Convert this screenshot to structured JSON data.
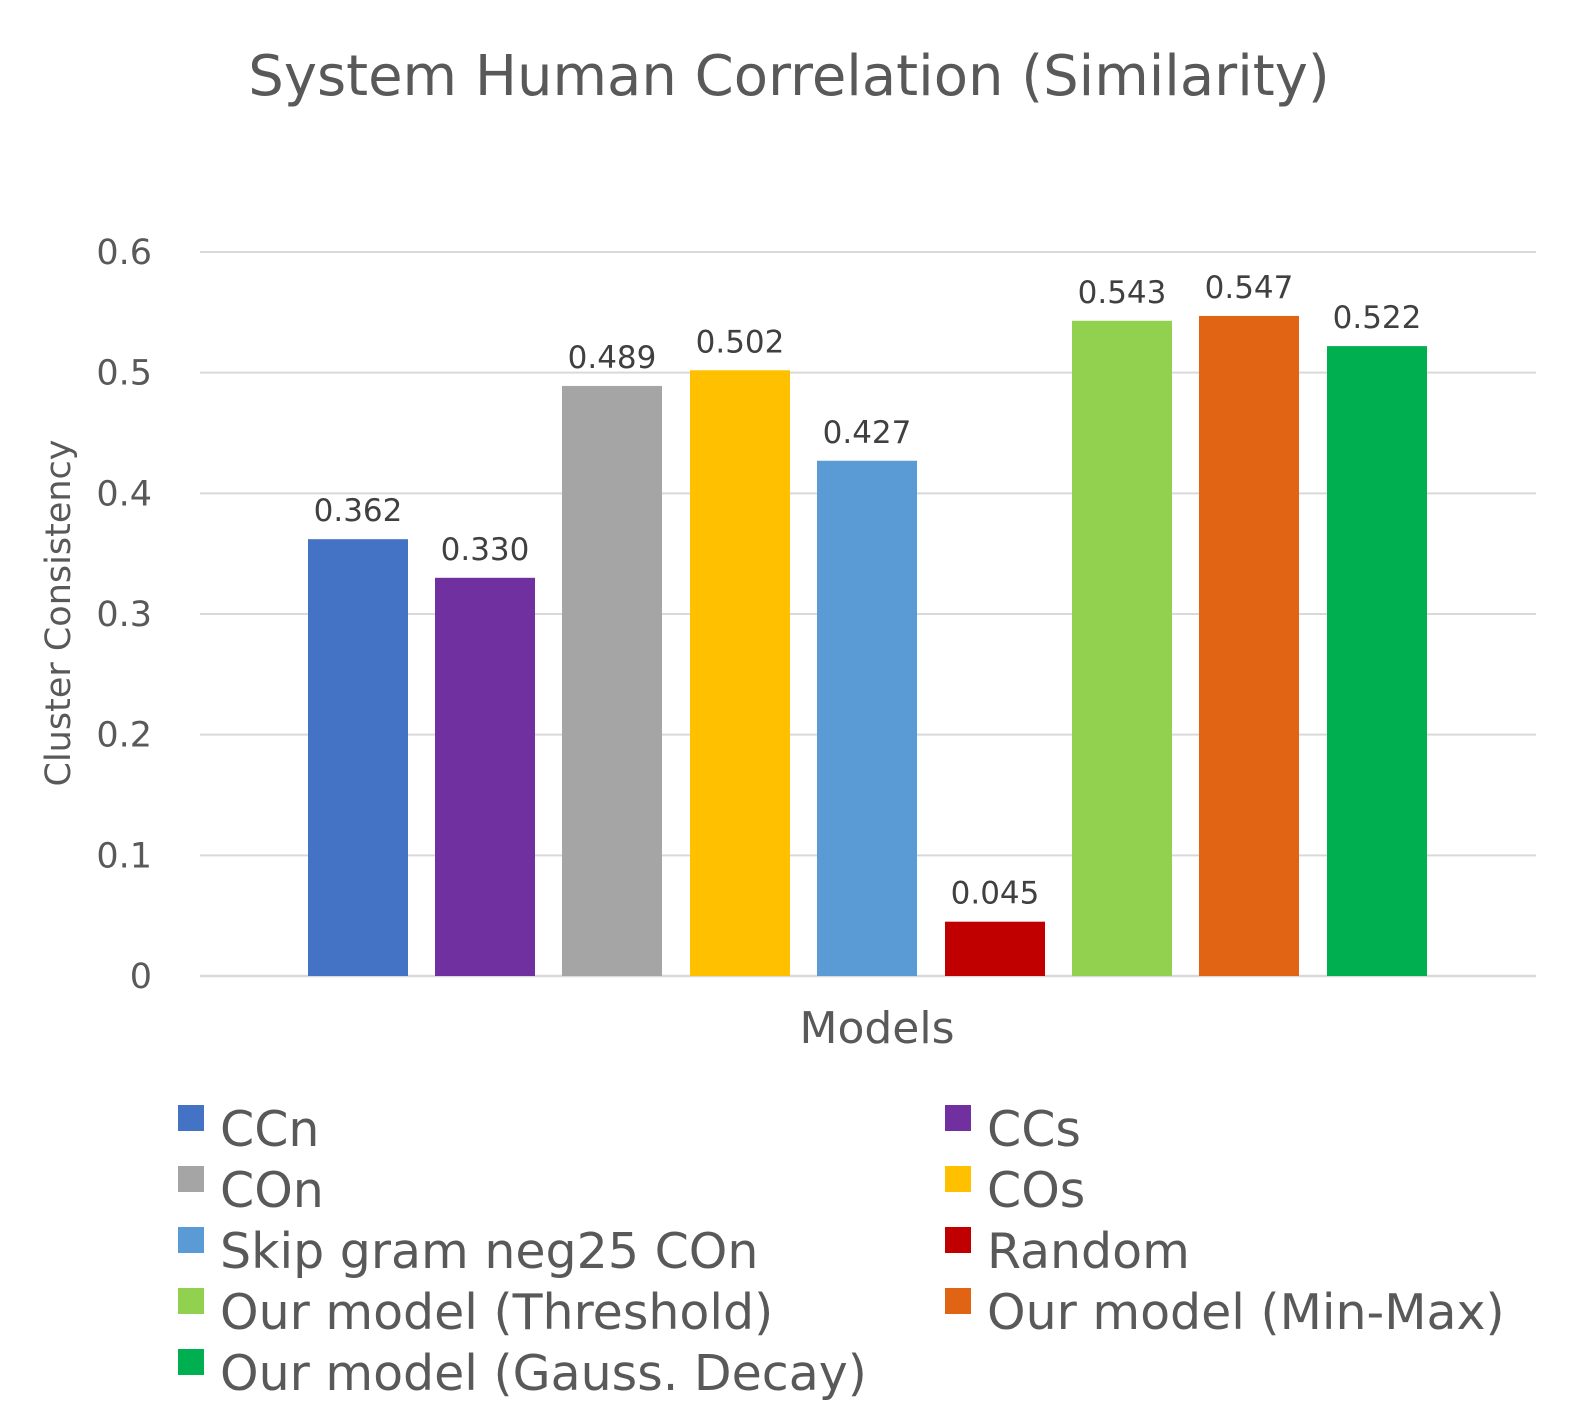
{
  "chart_data": {
    "type": "bar",
    "title": "System Human Correlation (Similarity)",
    "xlabel": "Models",
    "ylabel": "Cluster Consistency",
    "ylim": [
      0,
      0.6
    ],
    "yticks": [
      "0",
      "0.1",
      "0.2",
      "0.3",
      "0.4",
      "0.5",
      "0.6"
    ],
    "grid": true,
    "legend_position": "bottom",
    "series": [
      {
        "name": "CCn",
        "value": 0.362,
        "label": "0.362",
        "color": "#4472C4"
      },
      {
        "name": "CCs",
        "value": 0.33,
        "label": "0.330",
        "color": "#7030A0"
      },
      {
        "name": "COn",
        "value": 0.489,
        "label": "0.489",
        "color": "#A5A5A5"
      },
      {
        "name": "COs",
        "value": 0.502,
        "label": "0.502",
        "color": "#FFC000"
      },
      {
        "name": "Skip gram neg25 COn",
        "value": 0.427,
        "label": "0.427",
        "color": "#5B9BD5"
      },
      {
        "name": "Random",
        "value": 0.045,
        "label": "0.045",
        "color": "#C00000"
      },
      {
        "name": "Our model (Threshold)",
        "value": 0.543,
        "label": "0.543",
        "color": "#92D050"
      },
      {
        "name": "Our model (Min-Max)",
        "value": 0.547,
        "label": "0.547",
        "color": "#E06414"
      },
      {
        "name": "Our model (Gauss. Decay)",
        "value": 0.522,
        "label": "0.522",
        "color": "#00B050"
      }
    ]
  }
}
